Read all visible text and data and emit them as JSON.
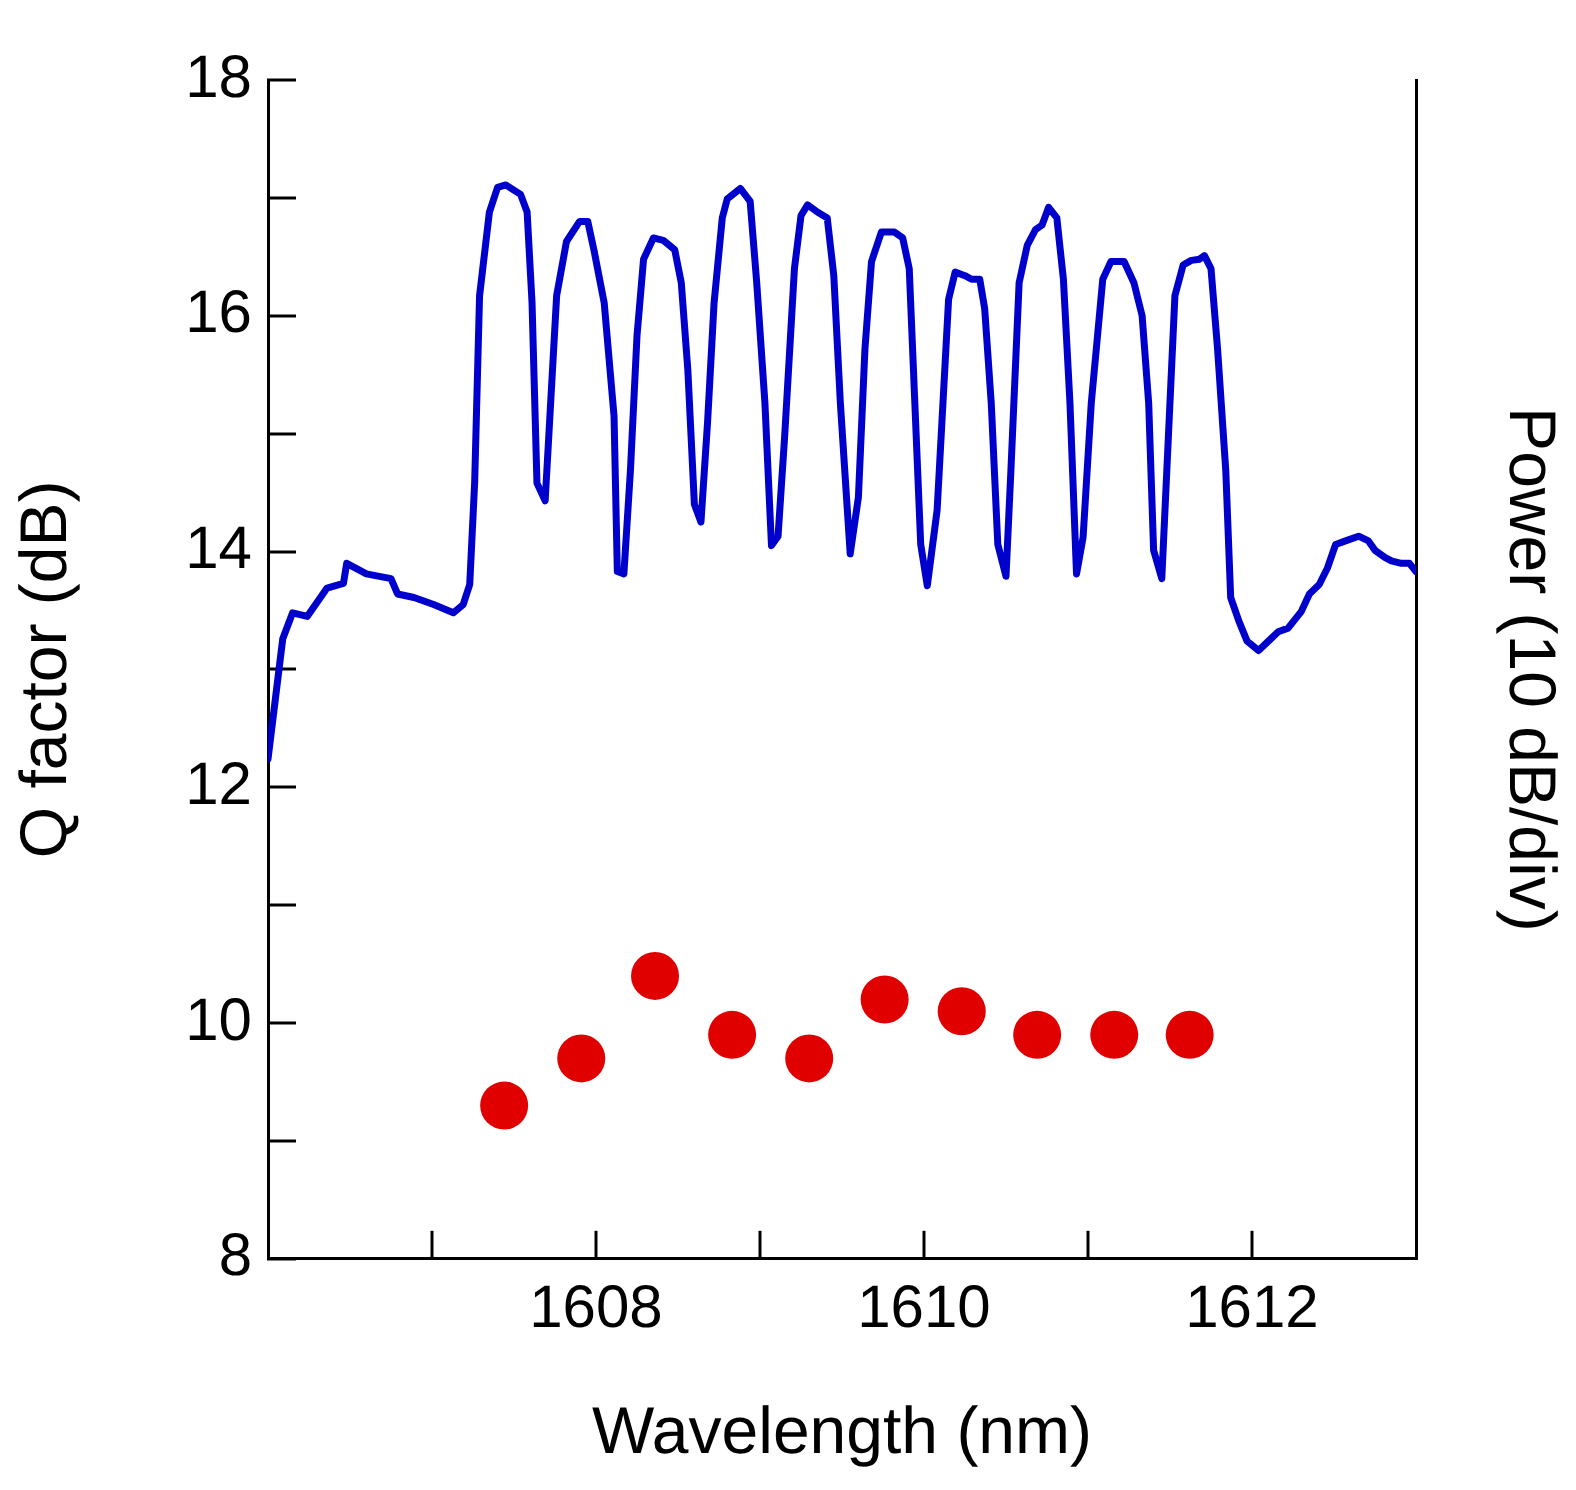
{
  "chart_data": {
    "type": "scatter",
    "xlabel": "Wavelength (nm)",
    "ylabel": "Q factor (dB)",
    "y2label": "Power (10 dB/div)",
    "xlim": [
      1606,
      1613
    ],
    "xticks": [
      {
        "value": 1607,
        "label": null
      },
      1608,
      {
        "value": 1609,
        "label": null
      },
      1610,
      {
        "value": 1611,
        "label": null
      },
      1612
    ],
    "ylim": [
      8,
      18
    ],
    "yticks": [
      8,
      {
        "value": 9,
        "label": null
      },
      10,
      {
        "value": 11,
        "label": null
      },
      12,
      {
        "value": 13,
        "label": null
      },
      14,
      {
        "value": 15,
        "label": null
      },
      16,
      {
        "value": 17,
        "label": null
      },
      18
    ],
    "grid": false,
    "legend": false,
    "series": [
      {
        "type": "line",
        "color": "#0000cc",
        "marker": "none",
        "line_style": "solid",
        "x": [
          1606.0,
          1606.09,
          1606.15,
          1606.24,
          1606.36,
          1606.46,
          1606.48,
          1606.6,
          1606.75,
          1606.79,
          1606.89,
          1607.01,
          1607.13,
          1607.19,
          1607.23,
          1607.26,
          1607.29,
          1607.35,
          1607.4,
          1607.45,
          1607.54,
          1607.58,
          1607.61,
          1607.64,
          1607.69,
          1607.76,
          1607.82,
          1607.9,
          1607.95,
          1607.99,
          1608.05,
          1608.11,
          1608.13,
          1608.17,
          1608.21,
          1608.25,
          1608.29,
          1608.35,
          1608.41,
          1608.48,
          1608.52,
          1608.56,
          1608.6,
          1608.64,
          1608.68,
          1608.72,
          1608.77,
          1608.8,
          1608.88,
          1608.94,
          1608.98,
          1609.03,
          1609.07,
          1609.11,
          1609.15,
          1609.21,
          1609.25,
          1609.29,
          1609.35,
          1609.41,
          1609.45,
          1609.49,
          1609.55,
          1609.6,
          1609.64,
          1609.68,
          1609.74,
          1609.82,
          1609.87,
          1609.91,
          1609.98,
          1610.02,
          1610.08,
          1610.15,
          1610.19,
          1610.25,
          1610.29,
          1610.34,
          1610.37,
          1610.41,
          1610.45,
          1610.5,
          1610.53,
          1610.58,
          1610.63,
          1610.68,
          1610.72,
          1610.76,
          1610.81,
          1610.85,
          1610.89,
          1610.93,
          1610.97,
          1611.02,
          1611.09,
          1611.14,
          1611.22,
          1611.28,
          1611.33,
          1611.37,
          1611.4,
          1611.45,
          1611.49,
          1611.53,
          1611.58,
          1611.63,
          1611.68,
          1611.71,
          1611.75,
          1611.79,
          1611.84,
          1611.87,
          1611.92,
          1611.97,
          1612.04,
          1612.1,
          1612.16,
          1612.22,
          1612.3,
          1612.35,
          1612.41,
          1612.46,
          1612.51,
          1612.57,
          1612.65,
          1612.71,
          1612.75,
          1612.81,
          1612.85,
          1612.91,
          1612.96,
          1613.0
        ],
        "values": [
          12.24,
          13.26,
          13.48,
          13.45,
          13.69,
          13.73,
          13.9,
          13.81,
          13.77,
          13.64,
          13.61,
          13.55,
          13.48,
          13.55,
          13.72,
          14.58,
          16.17,
          16.88,
          17.09,
          17.11,
          17.03,
          16.88,
          16.11,
          14.58,
          14.43,
          16.17,
          16.63,
          16.8,
          16.8,
          16.54,
          16.11,
          15.15,
          13.83,
          13.81,
          14.69,
          15.83,
          16.48,
          16.66,
          16.64,
          16.56,
          16.28,
          15.54,
          14.4,
          14.25,
          15.09,
          16.11,
          16.83,
          16.99,
          17.08,
          16.97,
          16.28,
          15.26,
          14.05,
          14.13,
          14.97,
          16.4,
          16.85,
          16.94,
          16.88,
          16.83,
          16.34,
          15.26,
          13.98,
          14.46,
          15.72,
          16.46,
          16.71,
          16.71,
          16.66,
          16.4,
          14.06,
          13.71,
          14.35,
          16.14,
          16.37,
          16.34,
          16.31,
          16.31,
          16.06,
          15.26,
          14.06,
          13.79,
          14.69,
          16.28,
          16.6,
          16.73,
          16.77,
          16.92,
          16.83,
          16.31,
          15.26,
          13.81,
          14.12,
          15.26,
          16.31,
          16.46,
          16.46,
          16.28,
          16.0,
          15.26,
          14.01,
          13.77,
          14.97,
          16.17,
          16.43,
          16.47,
          16.48,
          16.51,
          16.4,
          15.72,
          14.69,
          13.61,
          13.41,
          13.24,
          13.16,
          13.24,
          13.32,
          13.35,
          13.49,
          13.64,
          13.72,
          13.86,
          14.06,
          14.09,
          14.13,
          14.09,
          14.01,
          13.95,
          13.92,
          13.9,
          13.9,
          13.83
        ]
      },
      {
        "type": "scatter",
        "color": "#e00000",
        "marker": "circle",
        "x": [
          1607.44,
          1607.91,
          1608.36,
          1608.83,
          1609.3,
          1609.76,
          1610.23,
          1610.69,
          1611.16,
          1611.62
        ],
        "values": [
          9.3,
          9.7,
          10.4,
          9.9,
          9.7,
          10.2,
          10.1,
          9.9,
          9.9,
          9.9
        ]
      }
    ]
  }
}
